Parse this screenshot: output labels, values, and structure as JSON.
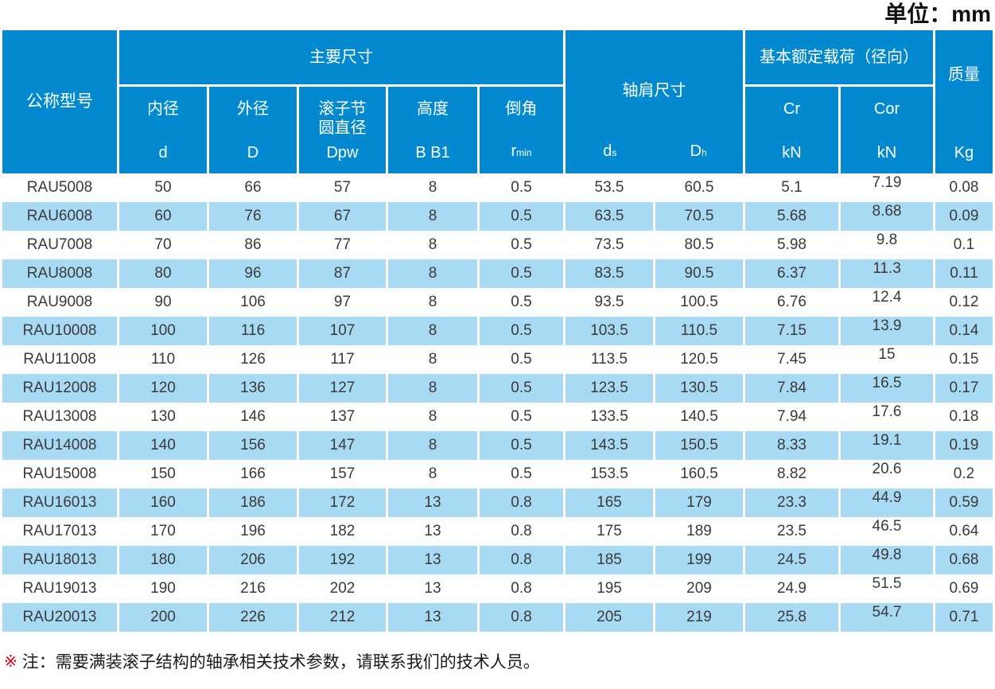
{
  "unit_label": "单位：mm",
  "table": {
    "header": {
      "model": "公称型号",
      "main_dims": "主要尺寸",
      "inner": {
        "label": "内径",
        "symbol": "d"
      },
      "outer": {
        "label": "外径",
        "symbol": "D"
      },
      "pitch": {
        "label1": "滚子节",
        "label2": "圆直径",
        "symbol": "Dpw"
      },
      "height": {
        "label": "高度",
        "symbol": "B B1"
      },
      "chamfer": {
        "label": "倒角",
        "symbol": "r",
        "symbol_sub": "min"
      },
      "shoulder": {
        "label": "轴肩尺寸",
        "ds_main": "d",
        "ds_sub": "s",
        "dh_main": "D",
        "dh_sub": "h"
      },
      "load": {
        "label": "基本额定载荷（径向）",
        "cr": "Cr",
        "cor": "Cor",
        "cr_unit": "kN",
        "cor_unit": "kN"
      },
      "mass": {
        "label": "质量",
        "unit": "Kg"
      }
    },
    "rows": [
      [
        "RAU5008",
        "50",
        "66",
        "57",
        "8",
        "0.5",
        "53.5",
        "60.5",
        "5.1",
        "7.19",
        "0.08"
      ],
      [
        "RAU6008",
        "60",
        "76",
        "67",
        "8",
        "0.5",
        "63.5",
        "70.5",
        "5.68",
        "8.68",
        "0.09"
      ],
      [
        "RAU7008",
        "70",
        "86",
        "77",
        "8",
        "0.5",
        "73.5",
        "80.5",
        "5.98",
        "9.8",
        "0.1"
      ],
      [
        "RAU8008",
        "80",
        "96",
        "87",
        "8",
        "0.5",
        "83.5",
        "90.5",
        "6.37",
        "11.3",
        "0.11"
      ],
      [
        "RAU9008",
        "90",
        "106",
        "97",
        "8",
        "0.5",
        "93.5",
        "100.5",
        "6.76",
        "12.4",
        "0.12"
      ],
      [
        "RAU10008",
        "100",
        "116",
        "107",
        "8",
        "0.5",
        "103.5",
        "110.5",
        "7.15",
        "13.9",
        "0.14"
      ],
      [
        "RAU11008",
        "110",
        "126",
        "117",
        "8",
        "0.5",
        "113.5",
        "120.5",
        "7.45",
        "15",
        "0.15"
      ],
      [
        "RAU12008",
        "120",
        "136",
        "127",
        "8",
        "0.5",
        "123.5",
        "130.5",
        "7.84",
        "16.5",
        "0.17"
      ],
      [
        "RAU13008",
        "130",
        "146",
        "137",
        "8",
        "0.5",
        "133.5",
        "140.5",
        "7.94",
        "17.6",
        "0.18"
      ],
      [
        "RAU14008",
        "140",
        "156",
        "147",
        "8",
        "0.5",
        "143.5",
        "150.5",
        "8.33",
        "19.1",
        "0.19"
      ],
      [
        "RAU15008",
        "150",
        "166",
        "157",
        "8",
        "0.5",
        "153.5",
        "160.5",
        "8.82",
        "20.6",
        "0.2"
      ],
      [
        "RAU16013",
        "160",
        "186",
        "172",
        "13",
        "0.8",
        "165",
        "179",
        "23.3",
        "44.9",
        "0.59"
      ],
      [
        "RAU17013",
        "170",
        "196",
        "182",
        "13",
        "0.8",
        "175",
        "189",
        "23.5",
        "46.5",
        "0.64"
      ],
      [
        "RAU18013",
        "180",
        "206",
        "192",
        "13",
        "0.8",
        "185",
        "199",
        "24.5",
        "49.8",
        "0.68"
      ],
      [
        "RAU19013",
        "190",
        "216",
        "202",
        "13",
        "0.8",
        "195",
        "209",
        "24.9",
        "51.5",
        "0.69"
      ],
      [
        "RAU20013",
        "200",
        "226",
        "212",
        "13",
        "0.8",
        "205",
        "219",
        "25.8",
        "54.7",
        "0.71"
      ]
    ]
  },
  "note": {
    "marker": "※",
    "text": "注：需要满装滚子结构的轴承相关技术参数，请联系我们的技术人员。"
  },
  "colors": {
    "header_bg": "#0289d0",
    "stripe_bg": "#a8daf4",
    "note_marker_red": "#e60012",
    "data_text": "#3a3a3a"
  }
}
